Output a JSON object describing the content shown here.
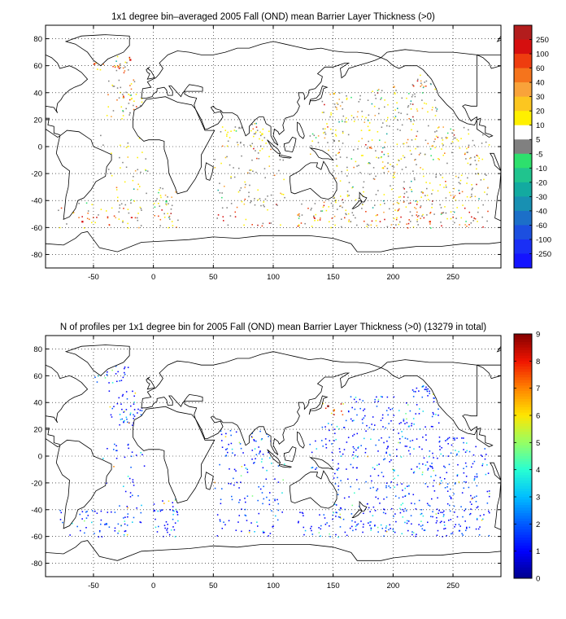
{
  "chart_data": [
    {
      "type": "heatmap",
      "title": "1x1 degree bin–averaged 2005 Fall (OND) mean Barrier Layer Thickness (>0)",
      "xlim": [
        -90,
        290
      ],
      "ylim": [
        -90,
        90
      ],
      "xticks": [
        -50,
        0,
        50,
        100,
        150,
        200,
        250
      ],
      "yticks": [
        80,
        60,
        40,
        20,
        0,
        -20,
        -40,
        -60,
        -80
      ],
      "grid": true,
      "colorbar": {
        "labels": [
          "250",
          "100",
          "60",
          "40",
          "30",
          "20",
          "10",
          "5",
          "-5",
          "-10",
          "-20",
          "-30",
          "-40",
          "-60",
          "-100",
          "-250"
        ],
        "colors": [
          "#b31d1d",
          "#d60f0f",
          "#ee3d0f",
          "#f5741c",
          "#f9a33a",
          "#fcc620",
          "#fff000",
          "#ffffff",
          "#808080",
          "#2de06d",
          "#20c48e",
          "#13aaa0",
          "#1890b2",
          "#1c6fc8",
          "#1c4fe0",
          "#1a2ff5",
          "#1414ff"
        ]
      },
      "samples": [
        {
          "lon": -50,
          "lat": 62,
          "v": 60
        },
        {
          "lon": -30,
          "lat": 60,
          "v": 40
        },
        {
          "lon": -20,
          "lat": 65,
          "v": 100
        },
        {
          "lon": 150,
          "lat": 40,
          "v": 20
        },
        {
          "lon": 200,
          "lat": 45,
          "v": 30
        },
        {
          "lon": 90,
          "lat": 10,
          "v": 10
        },
        {
          "lon": 150,
          "lat": 5,
          "v": 5
        },
        {
          "lon": 180,
          "lat": 0,
          "v": 40
        },
        {
          "lon": 10,
          "lat": -40,
          "v": -10
        },
        {
          "lon": 120,
          "lat": -50,
          "v": 30
        },
        {
          "lon": 230,
          "lat": -55,
          "v": 60
        },
        {
          "lon": -60,
          "lat": -55,
          "v": 100
        }
      ]
    },
    {
      "type": "heatmap",
      "title": "N of profiles per 1x1 degree bin for 2005 Fall (OND) mean Barrier Layer Thickness (>0) (13279 in total)",
      "xlim": [
        -90,
        290
      ],
      "ylim": [
        -90,
        90
      ],
      "xticks": [
        -50,
        0,
        50,
        100,
        150,
        200,
        250
      ],
      "yticks": [
        80,
        60,
        40,
        20,
        0,
        -20,
        -40,
        -60,
        -80
      ],
      "grid": true,
      "colorbar": {
        "labels": [
          "9",
          "8",
          "7",
          "6",
          "5",
          "4",
          "3",
          "2",
          "1",
          "0"
        ],
        "range": [
          0,
          9
        ]
      },
      "total_profiles": 13279,
      "samples": [
        {
          "lon": 145,
          "lat": 38,
          "v": 9
        },
        {
          "lon": 150,
          "lat": 35,
          "v": 7
        },
        {
          "lon": 100,
          "lat": 0,
          "v": 5
        },
        {
          "lon": 200,
          "lat": -10,
          "v": 3
        },
        {
          "lon": -40,
          "lat": -50,
          "v": 2
        },
        {
          "lon": 0,
          "lat": -40,
          "v": 1
        }
      ]
    }
  ]
}
